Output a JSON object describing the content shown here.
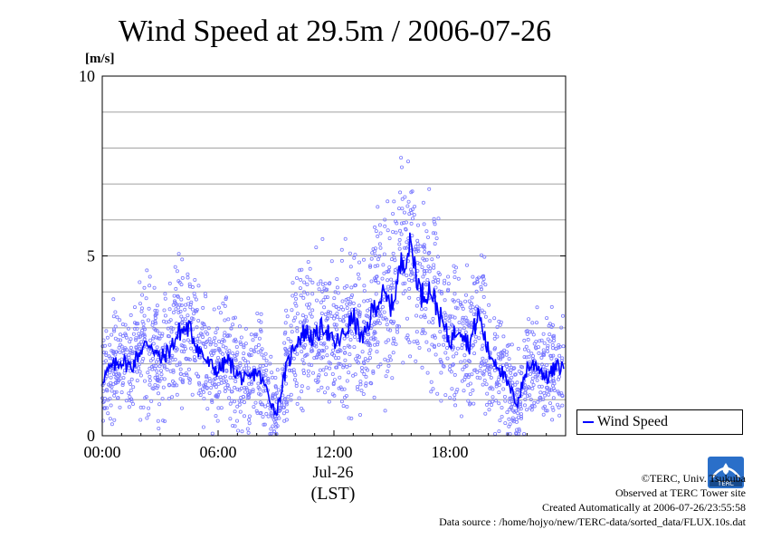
{
  "chart_data": {
    "type": "scatter",
    "title": "Wind Speed at 29.5m / 2006-07-26",
    "ylabel": "[m/s]",
    "xlabel": "(LST)",
    "date_label": "Jul-26",
    "ylim": [
      0,
      10
    ],
    "xlim": [
      0,
      24
    ],
    "y_ticks": [
      "0",
      "5",
      "10"
    ],
    "y_tick_values": [
      0,
      5,
      10
    ],
    "x_ticks": [
      "00:00",
      "06:00",
      "12:00",
      "18:00"
    ],
    "x_tick_values": [
      0,
      6,
      12,
      18
    ],
    "grid": true,
    "legend_position": "right",
    "colors": {
      "line": "#0000ff",
      "scatter": "#7b7bff"
    },
    "series": [
      {
        "name": "Wind Speed",
        "style": "line",
        "x": [
          0,
          0.5,
          1,
          1.5,
          2,
          2.5,
          3,
          3.5,
          4,
          4.5,
          5,
          5.5,
          6,
          6.5,
          7,
          7.5,
          8,
          8.5,
          9,
          9.5,
          10,
          10.5,
          11,
          11.5,
          12,
          12.5,
          13,
          13.5,
          14,
          14.5,
          15,
          15.5,
          16,
          16.5,
          17,
          17.5,
          18,
          18.5,
          19,
          19.5,
          20,
          20.5,
          21,
          21.5,
          22,
          22.5,
          23,
          23.5
        ],
        "y": [
          1.6,
          1.9,
          2.1,
          1.9,
          2.4,
          2.6,
          2.1,
          2.4,
          2.9,
          3.0,
          2.4,
          2.0,
          1.8,
          2.1,
          1.7,
          1.5,
          1.8,
          1.3,
          0.6,
          1.8,
          2.6,
          2.9,
          2.7,
          3.1,
          2.5,
          2.8,
          3.3,
          2.6,
          3.5,
          3.9,
          3.6,
          4.8,
          5.3,
          3.9,
          4.1,
          3.3,
          2.6,
          3.1,
          2.5,
          3.4,
          2.3,
          2.0,
          1.4,
          0.9,
          1.9,
          2.0,
          1.6,
          1.9
        ]
      }
    ],
    "scatter_note": "scattered 10-second samples around the mean, spread wider during daytime"
  },
  "legend": {
    "label": "Wind Speed"
  },
  "credits": {
    "copyright": "©TERC, Univ. Tsukuba",
    "observed": "Observed at TERC Tower site",
    "created": "Created Automatically at 2006-07-26/23:55:58",
    "source": "Data source : /home/hojyo/new/TERC-data/sorted_data/FLUX.10s.dat"
  },
  "logo": {
    "text": "TERC"
  }
}
